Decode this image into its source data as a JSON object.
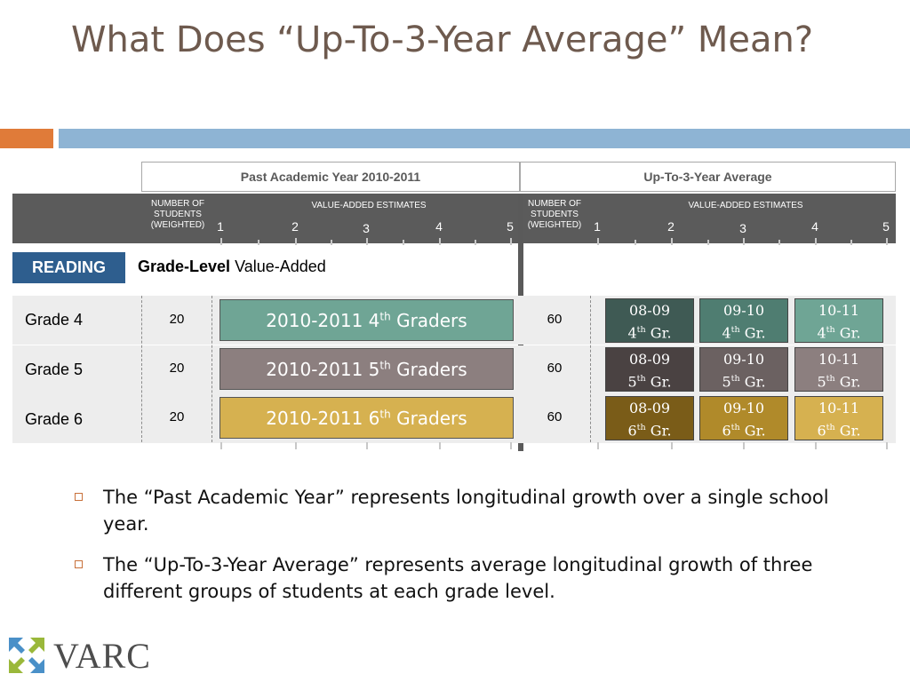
{
  "title": "What Does “Up-To-3-Year Average” Mean?",
  "colors": {
    "title": "#6e5a4e",
    "accent_orange": "#e07b39",
    "accent_blue": "#8eb4d4",
    "header_dark": "#5b5b5b",
    "reading_badge": "#2e5e8e",
    "row_bg": "#ededed",
    "grade4": "#6fa595",
    "grade5": "#8c7f7f",
    "grade6": "#d6b150",
    "logo_text": "#4d4d4d"
  },
  "table": {
    "past_header": "Past Academic Year 2010-2011",
    "avg_header": "Up-To-3-Year Average",
    "num_students_label": "NUMBER OF STUDENTS (WEIGHTED)",
    "value_added_label": "VALUE-ADDED ESTIMATES",
    "scale": [
      "1",
      "2",
      "3",
      "4",
      "5"
    ],
    "subject_badge": "READING",
    "grade_level_bold": "Grade-Level",
    "grade_level_rest": "Value-Added",
    "rows": [
      {
        "grade": "Grade 4",
        "past_n": "20",
        "past_prefix": "2010-2011 4",
        "past_sup": "th",
        "past_suffix": "Graders",
        "avg_n": "60",
        "avg_boxes": [
          {
            "year": "08-09",
            "grade": "4",
            "sup": "th",
            "rest": "Gr.",
            "color": "#3f5a54"
          },
          {
            "year": "09-10",
            "grade": "4",
            "sup": "th",
            "rest": "Gr.",
            "color": "#4f7d71"
          },
          {
            "year": "10-11",
            "grade": "4",
            "sup": "th",
            "rest": "Gr.",
            "color": "#6fa595"
          }
        ]
      },
      {
        "grade": "Grade 5",
        "past_n": "20",
        "past_prefix": "2010-2011 5",
        "past_sup": "th",
        "past_suffix": "Graders",
        "avg_n": "60",
        "avg_boxes": [
          {
            "year": "08-09",
            "grade": "5",
            "sup": "th",
            "rest": "Gr.",
            "color": "#4a4242"
          },
          {
            "year": "09-10",
            "grade": "5",
            "sup": "th",
            "rest": "Gr.",
            "color": "#6b6161"
          },
          {
            "year": "10-11",
            "grade": "5",
            "sup": "th",
            "rest": "Gr.",
            "color": "#8c7f7f"
          }
        ]
      },
      {
        "grade": "Grade 6",
        "past_n": "20",
        "past_prefix": "2010-2011 6",
        "past_sup": "th",
        "past_suffix": "Graders",
        "avg_n": "60",
        "avg_boxes": [
          {
            "year": "08-09",
            "grade": "6",
            "sup": "th",
            "rest": "Gr.",
            "color": "#7a5c18"
          },
          {
            "year": "09-10",
            "grade": "6",
            "sup": "th",
            "rest": "Gr.",
            "color": "#b08a2a"
          },
          {
            "year": "10-11",
            "grade": "6",
            "sup": "th",
            "rest": "Gr.",
            "color": "#d6b150"
          }
        ]
      }
    ]
  },
  "bullets": [
    "The “Past Academic Year” represents longitudinal growth over a single school year.",
    "The “Up-To-3-Year Average” represents average longitudinal growth of three different groups of students at each grade level."
  ],
  "logo": {
    "text": "VARC",
    "icon": "varc-logo-icon"
  }
}
